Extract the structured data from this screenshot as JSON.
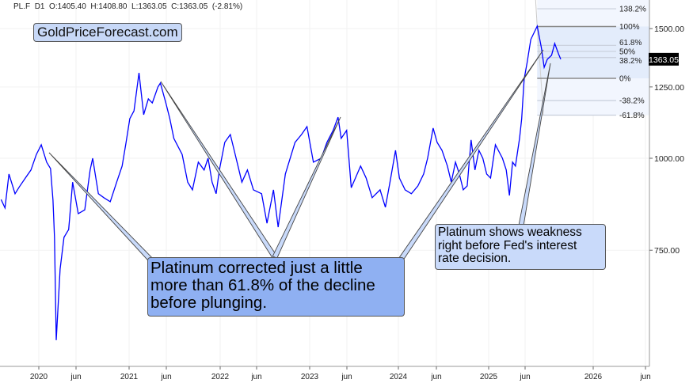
{
  "header": {
    "symbol": "PL.F",
    "timeframe": "D1",
    "open": "O:1405.40",
    "high": "H:1408.80",
    "low": "L:1363.05",
    "close": "C:1363.05",
    "change": "(-2.81%)"
  },
  "logo": "GoldPriceForecast.com",
  "annotations": {
    "box1": [
      "Platinum corrected just a little",
      "more than 61.8% of the decline",
      "before plunging."
    ],
    "box2": [
      "Platinum shows weakness",
      "right before Fed's interest",
      "rate decision."
    ]
  },
  "colors": {
    "series": "#0000ff",
    "fib_fill": "#e6eefc",
    "callout1": "#8fb0f2",
    "callout2": "#c9dafa",
    "last_price_bg": "#000000"
  },
  "chart_data": {
    "type": "line",
    "title": "",
    "xlabel": "",
    "ylabel": "",
    "y_scale": "log",
    "ylim": [
      520,
      1560
    ],
    "grid": true,
    "y_ticks": [
      {
        "value": 750,
        "label": "750.00"
      },
      {
        "value": 1000,
        "label": "1000.00"
      },
      {
        "value": 1250,
        "label": "1250.00"
      },
      {
        "value": 1500,
        "label": "1500.00"
      }
    ],
    "x_ticks": [
      {
        "date": "2020-01-01",
        "label": "2020"
      },
      {
        "date": "2020-06-01",
        "label": "jun"
      },
      {
        "date": "2021-01-01",
        "label": "2021"
      },
      {
        "date": "2021-06-01",
        "label": "jun"
      },
      {
        "date": "2022-01-01",
        "label": "2022"
      },
      {
        "date": "2022-06-01",
        "label": "jun"
      },
      {
        "date": "2023-01-01",
        "label": "2023"
      },
      {
        "date": "2023-06-01",
        "label": "jun"
      },
      {
        "date": "2024-01-01",
        "label": "2024"
      },
      {
        "date": "2024-06-01",
        "label": "jun"
      },
      {
        "date": "2025-01-01",
        "label": "2025"
      },
      {
        "date": "2025-06-01",
        "label": "jun"
      },
      {
        "date": "2026-01-01",
        "label": "2026"
      },
      {
        "date": "2026-06-01",
        "label": "jun"
      }
    ],
    "last_price": {
      "value": 1363.05,
      "label": "1363.05"
    },
    "fibonacci": {
      "low": 1284,
      "high": 1510,
      "start_date": "2025-07-09",
      "levels": [
        {
          "ratio": 1.382,
          "label": "138.2%"
        },
        {
          "ratio": 1.0,
          "label": "100%"
        },
        {
          "ratio": 0.618,
          "label": "61.8%"
        },
        {
          "ratio": 0.5,
          "label": "50%"
        },
        {
          "ratio": 0.382,
          "label": "38.2%"
        },
        {
          "ratio": 0.0,
          "label": "0%"
        },
        {
          "ratio": -0.382,
          "label": "-38.2%"
        },
        {
          "ratio": -0.618,
          "label": "-61.8%"
        }
      ]
    },
    "series": [
      {
        "dates": [
          "2019-07-31",
          "2019-08-16",
          "2019-09-01",
          "2019-09-26",
          "2019-10-13",
          "2019-11-07",
          "2019-11-30",
          "2019-12-22",
          "2020-01-11",
          "2020-02-02",
          "2020-02-18",
          "2020-02-28",
          "2020-03-05",
          "2020-03-12",
          "2020-03-28",
          "2020-04-13",
          "2020-05-02",
          "2020-05-18",
          "2020-06-10",
          "2020-07-06",
          "2020-07-28",
          "2020-08-07",
          "2020-08-30",
          "2020-09-21",
          "2020-10-17",
          "2020-11-12",
          "2020-12-04",
          "2020-12-20",
          "2021-01-04",
          "2021-01-21",
          "2021-02-10",
          "2021-03-01",
          "2021-03-20",
          "2021-04-05",
          "2021-04-28",
          "2021-05-08",
          "2021-05-30",
          "2021-06-15",
          "2021-07-01",
          "2021-08-03",
          "2021-08-25",
          "2021-09-13",
          "2021-10-06",
          "2021-10-29",
          "2021-11-14",
          "2021-11-30",
          "2021-12-16",
          "2021-12-29",
          "2022-01-20",
          "2022-02-12",
          "2022-02-28",
          "2022-03-16",
          "2022-04-01",
          "2022-04-24",
          "2022-05-19",
          "2022-06-21",
          "2022-07-13",
          "2022-08-08",
          "2022-08-27",
          "2022-09-25",
          "2022-11-03",
          "2022-11-29",
          "2022-12-21",
          "2023-01-16",
          "2023-02-17",
          "2023-03-12",
          "2023-04-06",
          "2023-04-26",
          "2023-05-09",
          "2023-05-31",
          "2023-06-19",
          "2023-07-28",
          "2023-08-20",
          "2023-09-14",
          "2023-10-17",
          "2023-11-08",
          "2023-11-27",
          "2023-12-20",
          "2024-01-05",
          "2024-01-28",
          "2024-02-22",
          "2024-03-19",
          "2024-04-11",
          "2024-04-27",
          "2024-05-19",
          "2024-06-04",
          "2024-06-24",
          "2024-07-16",
          "2024-08-01",
          "2024-08-18",
          "2024-09-03",
          "2024-09-19",
          "2024-10-05",
          "2024-10-21",
          "2024-11-06",
          "2024-11-22",
          "2024-12-08",
          "2024-12-24",
          "2025-01-09",
          "2025-01-29",
          "2025-02-27",
          "2025-03-15",
          "2025-03-28",
          "2025-04-10",
          "2025-04-22",
          "2025-05-09",
          "2025-05-18",
          "2025-05-28",
          "2025-06-07",
          "2025-06-19",
          "2025-07-09",
          "2025-07-22",
          "2025-07-31",
          "2025-08-10",
          "2025-08-23",
          "2025-09-02",
          "2025-09-14",
          "2025-09-21"
        ],
        "values": [
          879,
          856,
          952,
          895,
          914,
          940,
          964,
          1012,
          1043,
          988,
          968,
          877,
          781,
          566,
          707,
          781,
          800,
          928,
          841,
          851,
          964,
          1000,
          895,
          884,
          873,
          928,
          976,
          1051,
          1132,
          1160,
          1306,
          1146,
          1204,
          1189,
          1250,
          1265,
          1189,
          1132,
          1064,
          1012,
          928,
          906,
          988,
          964,
          1000,
          928,
          895,
          964,
          1051,
          1077,
          1025,
          976,
          928,
          964,
          906,
          895,
          816,
          906,
          806,
          952,
          1051,
          1077,
          1104,
          988,
          1000,
          1051,
          1091,
          1137,
          1064,
          1091,
          912,
          976,
          940,
          884,
          906,
          858,
          928,
          1025,
          940,
          906,
          895,
          917,
          952,
          1000,
          1099,
          1051,
          1025,
          976,
          928,
          988,
          952,
          906,
          917,
          1059,
          964,
          1025,
          1000,
          952,
          940,
          1043,
          1000,
          964,
          890,
          988,
          976,
          1064,
          1132,
          1281,
          1346,
          1450,
          1512,
          1414,
          1329,
          1363,
          1380,
          1432,
          1386,
          1363.05
        ]
      }
    ]
  }
}
